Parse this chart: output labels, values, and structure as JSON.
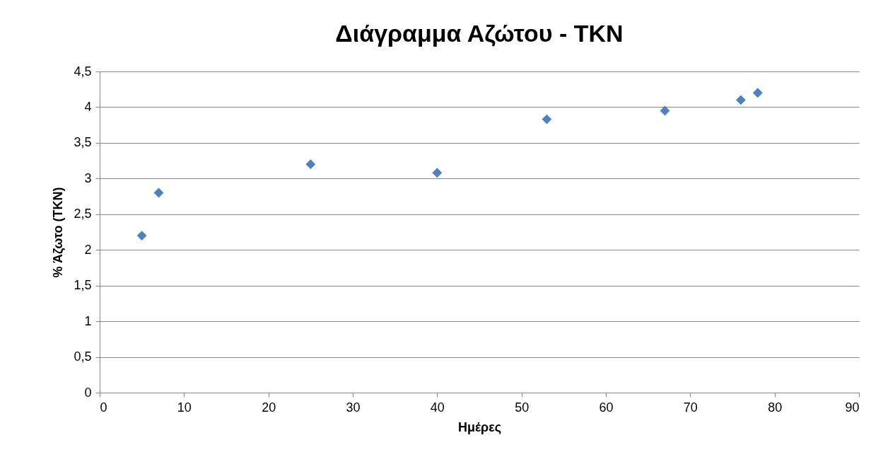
{
  "chart_data": {
    "type": "scatter",
    "title": "Διάγραμμα Αζώτου - TKN",
    "xlabel": "Ημέρες",
    "ylabel": "% Άζωτο (TKN)",
    "x": [
      5,
      7,
      25,
      40,
      53,
      67,
      76,
      78
    ],
    "series": [
      {
        "color": "#4f81bd",
        "values": [
          2.2,
          2.8,
          3.2,
          3.08,
          3.83,
          3.95,
          4.1,
          4.2
        ]
      }
    ],
    "xlim": [
      0,
      90
    ],
    "xticks": [
      0,
      10,
      20,
      30,
      40,
      50,
      60,
      70,
      80,
      90
    ],
    "ylim": [
      0,
      4.5
    ],
    "yticks": [
      0,
      {
        "value": 0.5,
        "label": "0,5"
      },
      1,
      {
        "value": 1.5,
        "label": "1,5"
      },
      2,
      {
        "value": 2.5,
        "label": "2,5"
      },
      3,
      {
        "value": 3.5,
        "label": "3,5"
      },
      4,
      {
        "value": 4.5,
        "label": "4,5"
      }
    ],
    "grid": "y",
    "marker": "diamond"
  }
}
